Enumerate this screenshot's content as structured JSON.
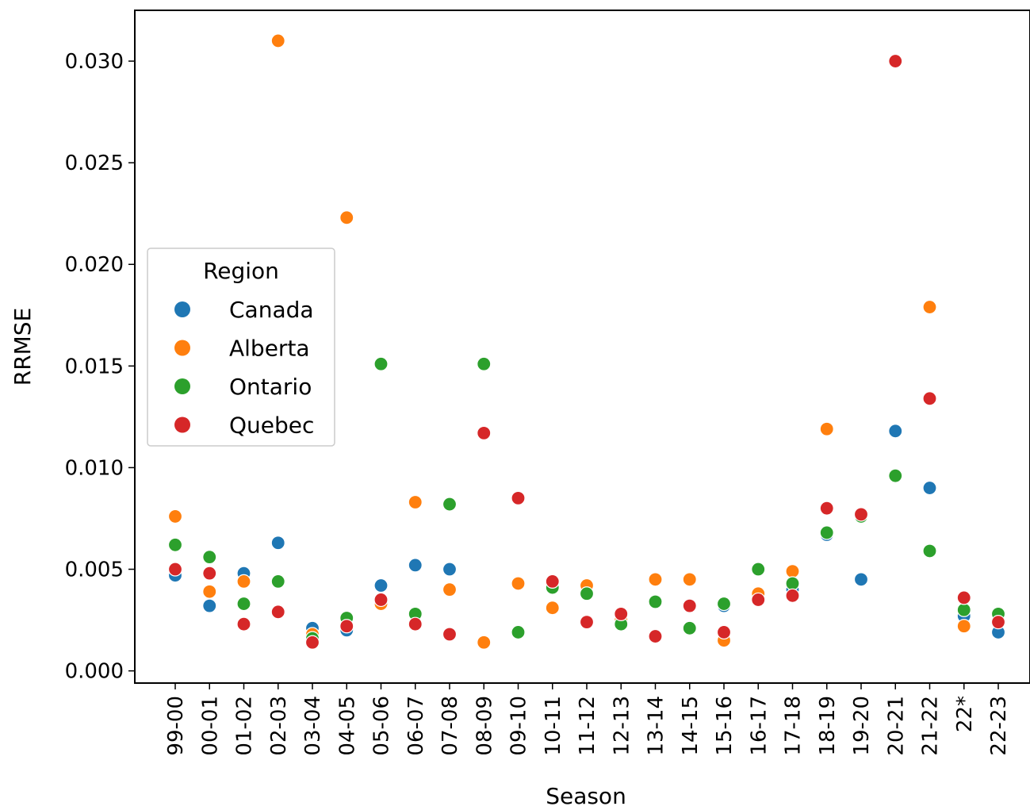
{
  "chart_data": {
    "type": "scatter",
    "xlabel": "Season",
    "ylabel": "RRMSE",
    "ylim": [
      -0.0006,
      0.0325
    ],
    "yticks": [
      0.0,
      0.005,
      0.01,
      0.015,
      0.02,
      0.025,
      0.03
    ],
    "ytick_labels": [
      "0.000",
      "0.005",
      "0.010",
      "0.015",
      "0.020",
      "0.025",
      "0.030"
    ],
    "categories": [
      "99-00",
      "00-01",
      "01-02",
      "02-03",
      "03-04",
      "04-05",
      "05-06",
      "06-07",
      "07-08",
      "08-09",
      "09-10",
      "10-11",
      "11-12",
      "12-13",
      "13-14",
      "14-15",
      "15-16",
      "16-17",
      "17-18",
      "18-19",
      "19-20",
      "20-21",
      "21-22",
      "22*",
      "22-23"
    ],
    "legend": {
      "title": "Region",
      "placement": "center-left"
    },
    "grid": false,
    "series": [
      {
        "name": "Canada",
        "color": "#1f77b4",
        "values": [
          0.0047,
          0.0032,
          0.0048,
          0.0063,
          0.0021,
          0.002,
          0.0042,
          0.0052,
          0.005,
          null,
          null,
          0.0042,
          0.0042,
          0.0027,
          0.0034,
          0.0021,
          0.0032,
          0.0036,
          0.004,
          0.0067,
          0.0045,
          0.0118,
          0.009,
          0.0027,
          0.0019
        ]
      },
      {
        "name": "Alberta",
        "color": "#ff7f0e",
        "values": [
          0.0076,
          0.0039,
          0.0044,
          0.031,
          0.0018,
          0.0223,
          0.0033,
          0.0083,
          0.004,
          0.0014,
          0.0043,
          0.0031,
          0.0042,
          0.0025,
          0.0045,
          0.0045,
          0.0015,
          0.0038,
          0.0049,
          0.0119,
          0.0076,
          0.03,
          0.0179,
          0.0022,
          0.0025
        ]
      },
      {
        "name": "Ontario",
        "color": "#2ca02c",
        "values": [
          0.0062,
          0.0056,
          0.0033,
          0.0044,
          0.0016,
          0.0026,
          0.0151,
          0.0028,
          0.0082,
          0.0151,
          0.0019,
          0.0041,
          0.0038,
          0.0023,
          0.0034,
          0.0021,
          0.0033,
          0.005,
          0.0043,
          0.0068,
          0.0076,
          0.0096,
          0.0059,
          0.003,
          0.0028
        ]
      },
      {
        "name": "Quebec",
        "color": "#d62728",
        "values": [
          0.005,
          0.0048,
          0.0023,
          0.0029,
          0.0014,
          0.0022,
          0.0035,
          0.0023,
          0.0018,
          0.0117,
          0.0085,
          0.0044,
          0.0024,
          0.0028,
          0.0017,
          0.0032,
          0.0019,
          0.0035,
          0.0037,
          0.008,
          0.0077,
          0.03,
          0.0134,
          0.0036,
          0.0024
        ]
      }
    ]
  }
}
